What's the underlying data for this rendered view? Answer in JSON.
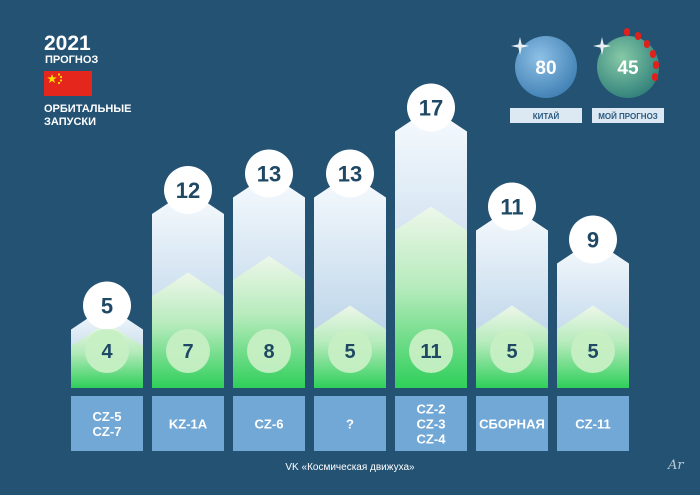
{
  "header": {
    "year": "2021",
    "forecast_label": "ПРОГНОЗ",
    "subtitle_line1": "ОРБИТАЛЬНЫЕ",
    "subtitle_line2": "ЗАПУСКИ",
    "flag_colors": {
      "red": "#e5261c",
      "star": "#ffde00"
    }
  },
  "summary": [
    {
      "value": "80",
      "label": "КИТАЙ",
      "color": "#5b97c4"
    },
    {
      "value": "45",
      "label": "МОЙ ПРОГНОЗ",
      "color": "#4f9b90"
    }
  ],
  "footer": {
    "credit": "VK «Космическая движуха»",
    "signature": "Ar"
  },
  "chart_data": {
    "type": "bar",
    "categories": [
      [
        "CZ-5",
        "CZ-7"
      ],
      [
        "KZ-1A"
      ],
      [
        "CZ-6"
      ],
      [
        "?"
      ],
      [
        "CZ-2",
        "CZ-3",
        "CZ-4"
      ],
      [
        "СБОРНАЯ"
      ],
      [
        "CZ-11"
      ]
    ],
    "series": [
      {
        "name": "",
        "values": [
          5,
          12,
          13,
          13,
          17,
          11,
          9
        ],
        "color": "#eef4fb"
      },
      {
        "name": "",
        "values": [
          4,
          7,
          8,
          5,
          11,
          5,
          5
        ],
        "color": "#33d05c"
      }
    ],
    "title": "ОРБИТАЛЬНЫЕ ЗАПУСКИ",
    "xlabel": "",
    "ylabel": "",
    "grid": false
  }
}
